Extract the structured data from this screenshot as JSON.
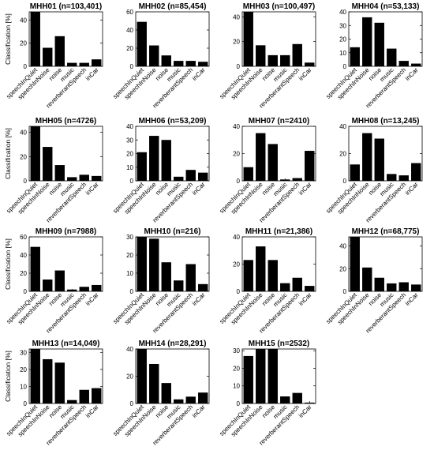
{
  "chart_data": [
    {
      "type": "bar",
      "title": "MHH01 (n=103,401)",
      "ylabel": "Classification [%]",
      "xlabel": "",
      "ylim": [
        0,
        47
      ],
      "yticks": [
        0,
        20,
        40
      ],
      "categories": [
        "speechInQuiet",
        "speechInNoise",
        "noise",
        "music",
        "reverberantSpeech",
        "inCar"
      ],
      "values": [
        47,
        16,
        26,
        3,
        3,
        6
      ]
    },
    {
      "type": "bar",
      "title": "MHH02 (n=85,454)",
      "ylabel": "",
      "xlabel": "",
      "ylim": [
        0,
        60
      ],
      "yticks": [
        0,
        20,
        40,
        60
      ],
      "categories": [
        "speechInQuiet",
        "speechInNoise",
        "noise",
        "music",
        "reverberantSpeech",
        "inCar"
      ],
      "values": [
        49,
        23,
        12,
        6,
        6,
        5
      ]
    },
    {
      "type": "bar",
      "title": "MHH03 (n=100,497)",
      "ylabel": "",
      "xlabel": "",
      "ylim": [
        0,
        44
      ],
      "yticks": [
        0,
        20,
        40
      ],
      "categories": [
        "speechInQuiet",
        "speechInNoise",
        "noise",
        "music",
        "reverberantSpeech",
        "inCar"
      ],
      "values": [
        44,
        17,
        9,
        9,
        18,
        3
      ]
    },
    {
      "type": "bar",
      "title": "MHH04 (n=53,133)",
      "ylabel": "",
      "xlabel": "",
      "ylim": [
        0,
        40
      ],
      "yticks": [
        0,
        10,
        20,
        30,
        40
      ],
      "categories": [
        "speechInQuiet",
        "speechInNoise",
        "noise",
        "music",
        "reverberantSpeech",
        "inCar"
      ],
      "values": [
        14,
        36,
        32,
        13,
        4,
        2
      ]
    },
    {
      "type": "bar",
      "title": "MHH05 (n=4726)",
      "ylabel": "Classification [%]",
      "xlabel": "",
      "ylim": [
        0,
        45
      ],
      "yticks": [
        0,
        20,
        40
      ],
      "categories": [
        "speechInQuiet",
        "speechInNoise",
        "noise",
        "music",
        "reverberantSpeech",
        "inCar"
      ],
      "values": [
        45,
        28,
        13,
        3,
        5,
        4
      ]
    },
    {
      "type": "bar",
      "title": "MHH06 (n=53,209)",
      "ylabel": "",
      "xlabel": "",
      "ylim": [
        0,
        40
      ],
      "yticks": [
        0,
        10,
        20,
        30,
        40
      ],
      "categories": [
        "speechInQuiet",
        "speechInNoise",
        "noise",
        "music",
        "reverberantSpeech",
        "inCar"
      ],
      "values": [
        21,
        33,
        30,
        3,
        8,
        6
      ]
    },
    {
      "type": "bar",
      "title": "MHH07 (n=2410)",
      "ylabel": "",
      "xlabel": "",
      "ylim": [
        0,
        40
      ],
      "yticks": [
        0,
        20,
        40
      ],
      "categories": [
        "speechInQuiet",
        "speechInNoise",
        "noise",
        "music",
        "reverberantSpeech",
        "inCar"
      ],
      "values": [
        10,
        35,
        27,
        1,
        2,
        22
      ]
    },
    {
      "type": "bar",
      "title": "MHH08 (n=13,245)",
      "ylabel": "",
      "xlabel": "",
      "ylim": [
        0,
        40
      ],
      "yticks": [
        0,
        20,
        40
      ],
      "categories": [
        "speechInQuiet",
        "speechInNoise",
        "noise",
        "music",
        "reverberantSpeech",
        "inCar"
      ],
      "values": [
        12,
        35,
        31,
        5,
        4,
        13
      ]
    },
    {
      "type": "bar",
      "title": "MHH09 (n=7988)",
      "ylabel": "Classification [%]",
      "xlabel": "",
      "ylim": [
        0,
        60
      ],
      "yticks": [
        0,
        20,
        40,
        60
      ],
      "categories": [
        "speechInQuiet",
        "speechInNoise",
        "noise",
        "music",
        "reverberantSpeech",
        "inCar"
      ],
      "values": [
        49,
        13,
        23,
        2,
        5,
        7
      ]
    },
    {
      "type": "bar",
      "title": "MHH10 (n=216)",
      "ylabel": "",
      "xlabel": "",
      "ylim": [
        0,
        30
      ],
      "yticks": [
        0,
        10,
        20,
        30
      ],
      "categories": [
        "speechInQuiet",
        "speechInNoise",
        "noise",
        "music",
        "reverberantSpeech",
        "inCar"
      ],
      "values": [
        30,
        29,
        16,
        6,
        15,
        4
      ]
    },
    {
      "type": "bar",
      "title": "MHH11 (n=21,386)",
      "ylabel": "",
      "xlabel": "",
      "ylim": [
        0,
        40
      ],
      "yticks": [
        0,
        20,
        40
      ],
      "categories": [
        "speechInQuiet",
        "speechInNoise",
        "noise",
        "music",
        "reverberantSpeech",
        "inCar"
      ],
      "values": [
        23,
        33,
        23,
        6,
        10,
        4
      ]
    },
    {
      "type": "bar",
      "title": "MHH12 (n=68,775)",
      "ylabel": "",
      "xlabel": "",
      "ylim": [
        0,
        48
      ],
      "yticks": [
        0,
        20,
        40
      ],
      "categories": [
        "speechInQuiet",
        "speechInNoise",
        "noise",
        "music",
        "reverberantSpeech",
        "inCar"
      ],
      "values": [
        48,
        21,
        12,
        7,
        8,
        6
      ]
    },
    {
      "type": "bar",
      "title": "MHH13 (n=14,049)",
      "ylabel": "Classification [%]",
      "xlabel": "",
      "ylim": [
        0,
        32
      ],
      "yticks": [
        0,
        10,
        20,
        30
      ],
      "categories": [
        "speechInQuiet",
        "speechInNoise",
        "noise",
        "music",
        "reverberantSpeech",
        "inCar"
      ],
      "values": [
        32,
        26,
        24,
        2,
        8,
        9
      ]
    },
    {
      "type": "bar",
      "title": "MHH14 (n=28,291)",
      "ylabel": "",
      "xlabel": "",
      "ylim": [
        0,
        40
      ],
      "yticks": [
        0,
        20,
        40
      ],
      "categories": [
        "speechInQuiet",
        "speechInNoise",
        "noise",
        "music",
        "reverberantSpeech",
        "inCar"
      ],
      "values": [
        40,
        29,
        15,
        3,
        5,
        8
      ]
    },
    {
      "type": "bar",
      "title": "MHH15 (n=2532)",
      "ylabel": "",
      "xlabel": "",
      "ylim": [
        0,
        31
      ],
      "yticks": [
        0,
        10,
        20,
        30
      ],
      "categories": [
        "speechInQuiet",
        "speechInNoise",
        "noise",
        "music",
        "reverberantSpeech",
        "inCar"
      ],
      "values": [
        27,
        31,
        31,
        4,
        6,
        0.5
      ]
    }
  ],
  "colors": {
    "bar": "#000000",
    "axis": "#000000",
    "background": "#ffffff"
  }
}
